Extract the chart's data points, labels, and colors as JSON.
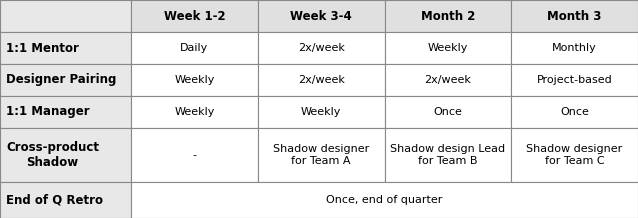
{
  "headers": [
    "",
    "Week 1-2",
    "Week 3-4",
    "Month 2",
    "Month 3"
  ],
  "rows": [
    [
      "1:1 Mentor",
      "Daily",
      "2x/week",
      "Weekly",
      "Monthly"
    ],
    [
      "Designer Pairing",
      "Weekly",
      "2x/week",
      "2x/week",
      "Project-based"
    ],
    [
      "1:1 Manager",
      "Weekly",
      "Weekly",
      "Once",
      "Once"
    ],
    [
      "Cross-product\nShadow",
      "-",
      "Shadow designer\nfor Team A",
      "Shadow design Lead\nfor Team B",
      "Shadow designer\nfor Team C"
    ],
    [
      "End of Q Retro",
      "Once, end of quarter",
      "",
      "",
      ""
    ]
  ],
  "header_bg": "#e0e0e0",
  "label_bg": "#e8e8e8",
  "cell_bg": "#ffffff",
  "border_color": "#888888",
  "header_font_size": 8.5,
  "cell_font_size": 8.0,
  "label_font_size": 8.5,
  "fig_width": 6.38,
  "fig_height": 2.18,
  "dpi": 100
}
